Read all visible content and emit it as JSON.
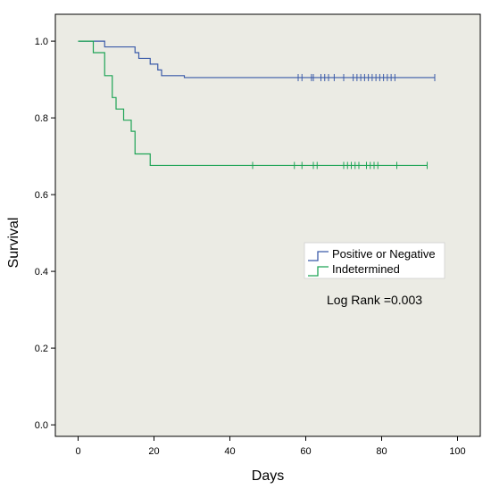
{
  "chart_data": {
    "type": "line",
    "step": true,
    "xlabel": "Days",
    "ylabel": "Survival",
    "xlim": [
      -6,
      106
    ],
    "ylim": [
      -0.03,
      1.07
    ],
    "xticks": [
      0,
      20,
      40,
      60,
      80,
      100
    ],
    "yticks": [
      0.0,
      0.2,
      0.4,
      0.6,
      0.8,
      1.0
    ],
    "ytick_labels": [
      "0.0",
      "0.2",
      "0.4",
      "0.6",
      "0.8",
      "1.0"
    ],
    "grid": false,
    "background": "#ebebe4",
    "legend_placement": "center-right",
    "series": [
      {
        "name": "Positive or Negative",
        "color": "#3b5ba9",
        "x": [
          0,
          7,
          15,
          16,
          19,
          21,
          22,
          28,
          94
        ],
        "y": [
          1.0,
          0.985,
          0.97,
          0.955,
          0.94,
          0.925,
          0.91,
          0.905,
          0.905
        ],
        "censored": [
          58,
          59,
          61.5,
          62,
          64,
          65,
          66,
          67.5,
          70,
          72.5,
          73.5,
          74.5,
          75.5,
          76.5,
          77.5,
          78.5,
          79.5,
          80.5,
          81.5,
          82.5,
          83.5,
          94
        ]
      },
      {
        "name": "Indetermined",
        "color": "#1fa456",
        "x": [
          0,
          4,
          7,
          9,
          10,
          12,
          14,
          15,
          19,
          92
        ],
        "y": [
          1.0,
          0.97,
          0.91,
          0.853,
          0.823,
          0.794,
          0.765,
          0.706,
          0.676,
          0.676
        ],
        "censored": [
          46,
          57,
          59,
          62,
          63,
          70,
          71,
          72,
          73,
          74,
          76,
          77,
          78,
          79,
          84,
          92
        ]
      }
    ],
    "annotation": "Log Rank =0.003"
  }
}
